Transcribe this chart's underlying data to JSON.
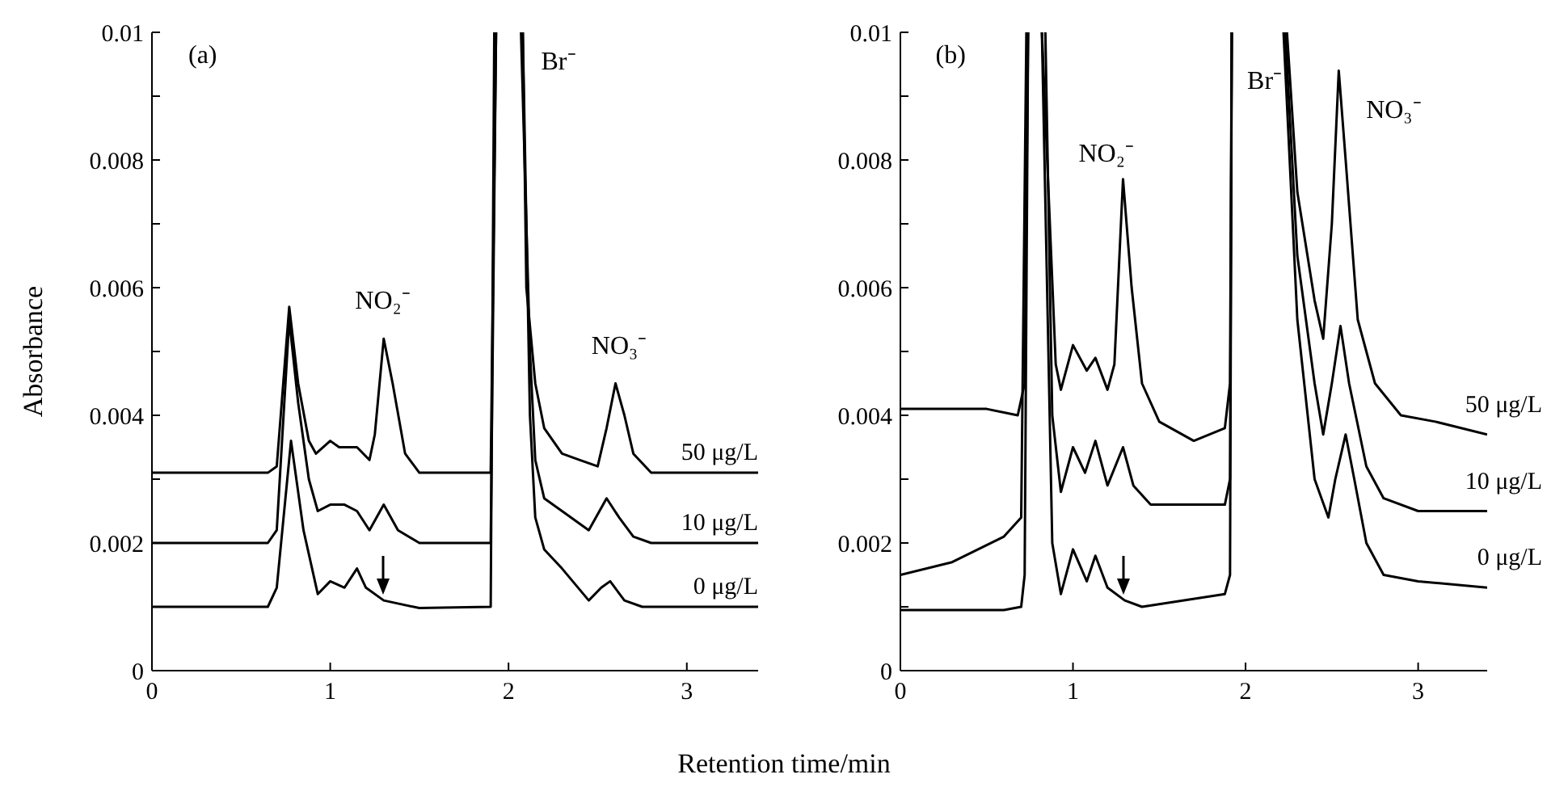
{
  "chart_data": [
    {
      "type": "line",
      "ylabel": "Absorbance",
      "xlabel": "Retention time/min",
      "xlim": [
        0,
        3.4
      ],
      "xticks": [
        0,
        1,
        2,
        3
      ],
      "ylim": [
        0,
        0.01
      ],
      "yticks": [
        0,
        {
          "value": 0.001,
          "label": null
        },
        0.002,
        {
          "value": 0.003,
          "label": null
        },
        0.004,
        {
          "value": 0.005,
          "label": null
        },
        0.006,
        {
          "value": 0.007,
          "label": null
        },
        0.008,
        {
          "value": 0.009,
          "label": null
        },
        0.01
      ],
      "grid": false,
      "legend": false,
      "marker": "none",
      "line_style": "solid",
      "annotations": [
        "(a)",
        "NO₂⁻",
        "Br⁻",
        "NO₃⁻"
      ],
      "series": [
        {
          "name": "50 μg/L",
          "color": "#000000",
          "x": [
            0,
            0.65,
            0.7,
            0.77,
            0.82,
            0.88,
            0.92,
            1.0,
            1.05,
            1.1,
            1.15,
            1.22,
            1.25,
            1.3,
            1.35,
            1.42,
            1.5,
            1.9,
            1.93,
            2.0,
            2.08,
            2.1,
            2.15,
            2.2,
            2.3,
            2.4,
            2.5,
            2.55,
            2.6,
            2.65,
            2.7,
            2.8,
            3.4
          ],
          "values": [
            0.0031,
            0.0031,
            0.0032,
            0.0057,
            0.0045,
            0.0036,
            0.0034,
            0.0036,
            0.0035,
            0.0035,
            0.0035,
            0.0033,
            0.0037,
            0.0052,
            0.0045,
            0.0034,
            0.0031,
            0.0031,
            0.01,
            null,
            0.01,
            0.006,
            0.0045,
            0.0038,
            0.0034,
            0.0033,
            0.0032,
            0.0038,
            0.0045,
            0.004,
            0.0034,
            0.0031,
            0.0031
          ]
        },
        {
          "name": "10 μg/L",
          "color": "#000000",
          "x": [
            0,
            0.65,
            0.7,
            0.77,
            0.82,
            0.88,
            0.93,
            1.0,
            1.08,
            1.15,
            1.22,
            1.3,
            1.38,
            1.5,
            1.9,
            1.93,
            2.0,
            2.07,
            2.12,
            2.15,
            2.2,
            2.3,
            2.45,
            2.55,
            2.62,
            2.7,
            2.8,
            3.4
          ],
          "values": [
            0.002,
            0.002,
            0.0022,
            0.0055,
            0.0042,
            0.003,
            0.0025,
            0.0026,
            0.0026,
            0.0025,
            0.0022,
            0.0026,
            0.0022,
            0.002,
            0.002,
            0.01,
            null,
            0.01,
            0.005,
            0.0033,
            0.0027,
            0.0025,
            0.0022,
            0.0027,
            0.0024,
            0.0021,
            0.002,
            0.002
          ]
        },
        {
          "name": "0 μg/L",
          "color": "#000000",
          "x": [
            0,
            0.65,
            0.7,
            0.78,
            0.85,
            0.93,
            1.0,
            1.08,
            1.15,
            1.2,
            1.3,
            1.5,
            1.9,
            1.92,
            2.0,
            2.08,
            2.12,
            2.15,
            2.2,
            2.3,
            2.45,
            2.52,
            2.57,
            2.65,
            2.75,
            3.4
          ],
          "values": [
            0.001,
            0.001,
            0.0013,
            0.0036,
            0.0022,
            0.0012,
            0.0014,
            0.0013,
            0.0016,
            0.0013,
            0.0011,
            0.00098,
            0.001,
            0.01,
            null,
            0.01,
            0.004,
            0.0024,
            0.0019,
            0.0016,
            0.0011,
            0.0013,
            0.0014,
            0.0011,
            0.001,
            0.001
          ]
        }
      ]
    },
    {
      "type": "line",
      "xlim": [
        0,
        3.4
      ],
      "xticks": [
        0,
        1,
        2,
        3
      ],
      "ylim": [
        0,
        0.01
      ],
      "yticks": [
        0,
        {
          "value": 0.001,
          "label": null
        },
        0.002,
        {
          "value": 0.003,
          "label": null
        },
        0.004,
        {
          "value": 0.005,
          "label": null
        },
        0.006,
        {
          "value": 0.007,
          "label": null
        },
        0.008,
        {
          "value": 0.009,
          "label": null
        },
        0.01
      ],
      "grid": false,
      "legend": false,
      "marker": "none",
      "line_style": "solid",
      "annotations": [
        "(b)",
        "NO₂⁻",
        "Br⁻",
        "NO₃⁻"
      ],
      "series": [
        {
          "name": "50 μg/L",
          "color": "#000000",
          "x": [
            0,
            0.5,
            0.68,
            0.72,
            0.74,
            0.78,
            0.82,
            0.9,
            0.93,
            1.0,
            1.08,
            1.13,
            1.2,
            1.24,
            1.29,
            1.34,
            1.4,
            1.5,
            1.7,
            1.88,
            1.91,
            1.92,
            2.1,
            2.24,
            2.3,
            2.4,
            2.45,
            2.5,
            2.54,
            2.58,
            2.65,
            2.75,
            2.9,
            3.1,
            3.4
          ],
          "values": [
            0.0041,
            0.0041,
            0.004,
            0.0045,
            0.01,
            null,
            0.01,
            0.0048,
            0.0044,
            0.0051,
            0.0047,
            0.0049,
            0.0044,
            0.0048,
            0.0077,
            0.006,
            0.0045,
            0.0039,
            0.0036,
            0.0038,
            0.0045,
            0.01,
            null,
            0.01,
            0.0075,
            0.0058,
            0.0052,
            0.007,
            0.0094,
            0.008,
            0.0055,
            0.0045,
            0.004,
            0.0039,
            0.0037
          ]
        },
        {
          "name": "10 μg/L",
          "color": "#000000",
          "x": [
            0,
            0.3,
            0.6,
            0.7,
            0.73,
            0.78,
            0.84,
            0.88,
            0.93,
            1.0,
            1.07,
            1.13,
            1.2,
            1.29,
            1.35,
            1.45,
            1.88,
            1.91,
            1.92,
            2.1,
            2.23,
            2.3,
            2.4,
            2.45,
            2.5,
            2.55,
            2.6,
            2.7,
            2.8,
            3.0,
            3.4
          ],
          "values": [
            0.0015,
            0.0017,
            0.0021,
            0.0024,
            0.01,
            null,
            0.01,
            0.004,
            0.0028,
            0.0035,
            0.0031,
            0.0036,
            0.0029,
            0.0035,
            0.0029,
            0.0026,
            0.0026,
            0.003,
            0.01,
            null,
            0.01,
            0.0065,
            0.0045,
            0.0037,
            0.0045,
            0.0054,
            0.0045,
            0.0032,
            0.0027,
            0.0025,
            0.0025
          ]
        },
        {
          "name": "0 μg/L",
          "color": "#000000",
          "x": [
            0,
            0.6,
            0.7,
            0.72,
            0.74,
            0.78,
            0.82,
            0.88,
            0.93,
            1.0,
            1.08,
            1.13,
            1.2,
            1.3,
            1.4,
            1.88,
            1.91,
            1.92,
            2.1,
            2.22,
            2.3,
            2.4,
            2.48,
            2.52,
            2.58,
            2.63,
            2.7,
            2.8,
            3.0,
            3.4
          ],
          "values": [
            0.00095,
            0.00095,
            0.001,
            0.0015,
            0.01,
            null,
            0.01,
            0.002,
            0.0012,
            0.0019,
            0.0014,
            0.0018,
            0.0013,
            0.0011,
            0.001,
            0.0012,
            0.0015,
            0.01,
            null,
            0.01,
            0.0055,
            0.003,
            0.0024,
            0.003,
            0.0037,
            0.003,
            0.002,
            0.0015,
            0.0014,
            0.0013
          ]
        }
      ]
    }
  ]
}
